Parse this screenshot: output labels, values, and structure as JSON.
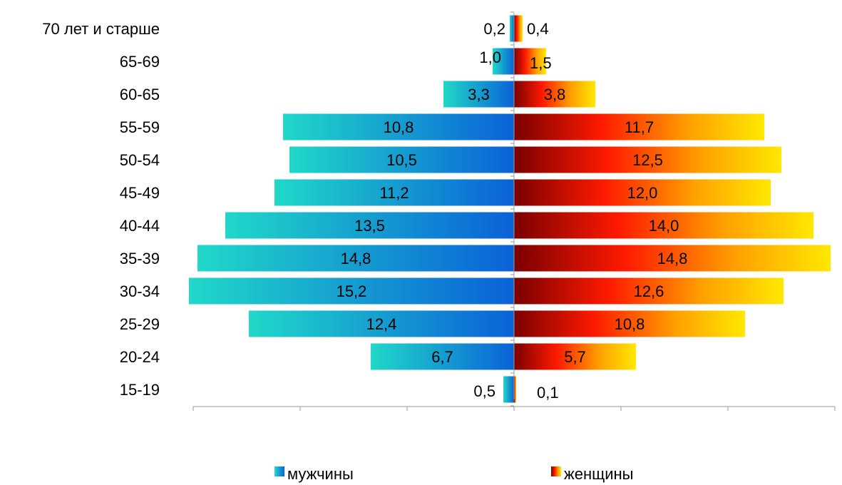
{
  "chart_data": {
    "type": "bar",
    "orientation": "horizontal",
    "variant": "population-pyramid",
    "categories": [
      "70 лет и старше",
      "65-69",
      "60-65",
      "55-59",
      "50-54",
      "45-49",
      "40-44",
      "35-39",
      "30-34",
      "25-29",
      "20-24",
      "15-19"
    ],
    "series": [
      {
        "name": "мужчины",
        "side": "left",
        "values": [
          0.2,
          1.0,
          3.3,
          10.8,
          10.5,
          11.2,
          13.5,
          14.8,
          15.2,
          12.4,
          6.7,
          0.5
        ],
        "labels": [
          "0,2",
          "1,0",
          "3,3",
          "10,8",
          "10,5",
          "11,2",
          "13,5",
          "14,8",
          "15,2",
          "12,4",
          "6,7",
          "0,5"
        ],
        "colors": [
          "#20d8c8",
          "#0a62d8"
        ]
      },
      {
        "name": "женщины",
        "side": "right",
        "values": [
          0.4,
          1.5,
          3.8,
          11.7,
          12.5,
          12.0,
          14.0,
          14.8,
          12.6,
          10.8,
          5.7,
          0.1
        ],
        "labels": [
          "0,4",
          "1,5",
          "3,8",
          "11,7",
          "12,5",
          "12,0",
          "14,0",
          "14,8",
          "12,6",
          "10,8",
          "5,7",
          "0,1"
        ],
        "colors": [
          "#7a0000",
          "#ff1a00",
          "#ffa000",
          "#ffe800"
        ]
      }
    ],
    "xlim": [
      -15,
      15
    ],
    "xtick_labels_visible": false,
    "grid": false,
    "legend_position": "bottom"
  }
}
